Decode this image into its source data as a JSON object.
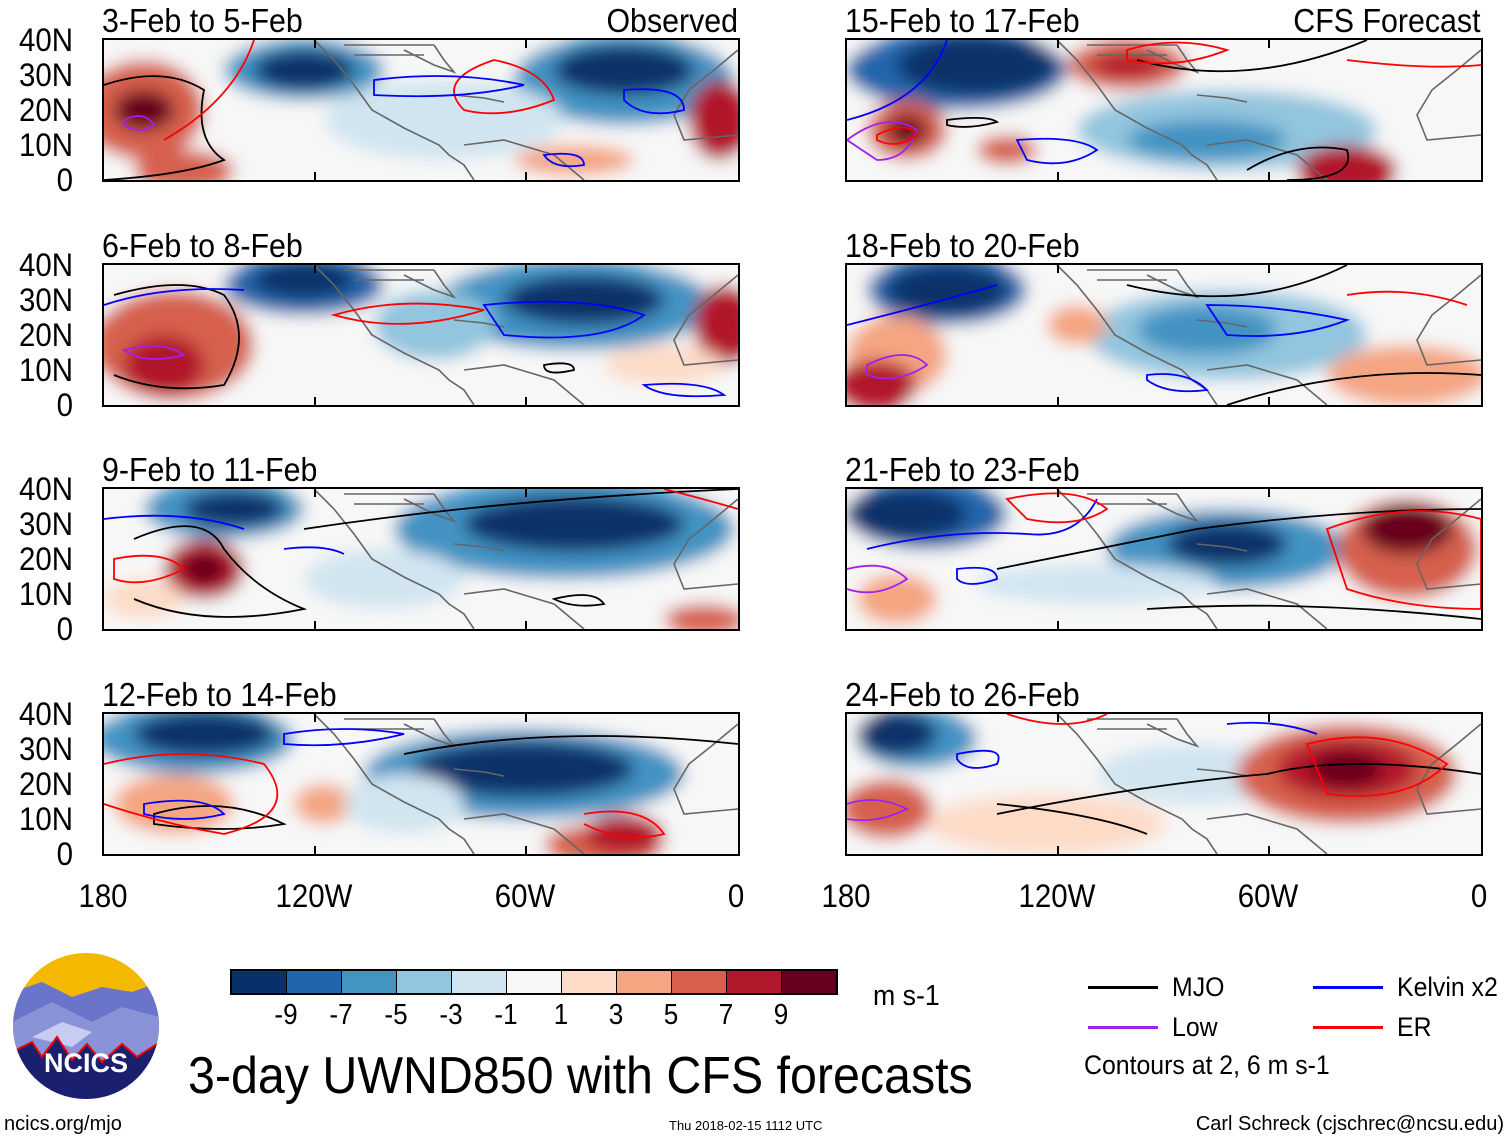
{
  "panels": [
    {
      "title": "3-Feb to 5-Feb",
      "tag": "Observed"
    },
    {
      "title": "6-Feb to 8-Feb",
      "tag": ""
    },
    {
      "title": "9-Feb to 11-Feb",
      "tag": ""
    },
    {
      "title": "12-Feb to 14-Feb",
      "tag": ""
    },
    {
      "title": "15-Feb to 17-Feb",
      "tag": "CFS Forecast"
    },
    {
      "title": "18-Feb to 20-Feb",
      "tag": ""
    },
    {
      "title": "21-Feb to 23-Feb",
      "tag": ""
    },
    {
      "title": "24-Feb to 26-Feb",
      "tag": ""
    }
  ],
  "y_ticks": [
    "40N",
    "30N",
    "20N",
    "10N",
    "0"
  ],
  "x_ticks": [
    "180",
    "120W",
    "60W",
    "0"
  ],
  "colorbar": {
    "colors": [
      "#08306b",
      "#2166ac",
      "#4393c3",
      "#92c5de",
      "#d1e5f0",
      "#f7f7f7",
      "#fddbc7",
      "#f4a582",
      "#d6604d",
      "#b2182b",
      "#67001f"
    ],
    "labels": [
      "-9",
      "-7",
      "-5",
      "-3",
      "-1",
      "1",
      "3",
      "5",
      "7",
      "9"
    ],
    "units": "m s-1"
  },
  "legend": {
    "items": [
      {
        "label": "MJO",
        "color": "#000000"
      },
      {
        "label": "Kelvin x2",
        "color": "#0000ff"
      },
      {
        "label": "Low",
        "color": "#a020f0"
      },
      {
        "label": "ER",
        "color": "#ff0000"
      }
    ],
    "note": "Contours at 2, 6 m s-1"
  },
  "title": "3-day UWND850 with CFS forecasts",
  "logo_text": "NCICS",
  "footer": {
    "url": "ncics.org/mjo",
    "timestamp": "Thu 2018-02-15 1112 UTC",
    "author": "Carl Schreck (cjschrec@ncsu.edu)"
  }
}
